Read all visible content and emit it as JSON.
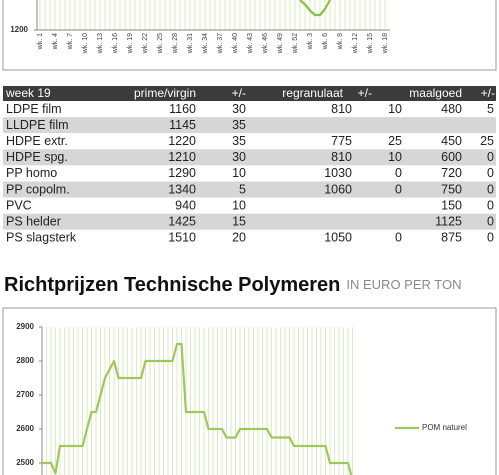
{
  "chart_data": [
    {
      "type": "line",
      "categories": [
        "wk. 1",
        null,
        null,
        "wk. 4",
        null,
        null,
        "wk. 7",
        null,
        null,
        "wk. 10",
        null,
        null,
        "wk. 13",
        null,
        null,
        "wk. 16",
        null,
        null,
        "wk. 19",
        null,
        null,
        "wk. 22",
        null,
        null,
        "wk. 25",
        null,
        null,
        "wk. 28",
        null,
        null,
        "wk. 31",
        null,
        null,
        "wk. 34",
        null,
        null,
        "wk. 37",
        null,
        null,
        "wk. 40",
        null,
        null,
        "wk. 43",
        null,
        null,
        "wk. 46",
        null,
        null,
        "wk. 49",
        null,
        null,
        "wk. 52",
        null,
        null,
        "wk. 3",
        null,
        null,
        "wk. 6",
        null,
        null,
        "wk. 9",
        null,
        null,
        "wk. 12",
        null,
        null,
        "wk. 15",
        null,
        null,
        "wk. 18"
      ],
      "series": [
        {
          "color": "#8cc044",
          "values": [
            null,
            null,
            null,
            null,
            null,
            null,
            null,
            null,
            null,
            null,
            null,
            null,
            null,
            null,
            null,
            null,
            null,
            null,
            null,
            null,
            null,
            null,
            null,
            null,
            null,
            null,
            null,
            null,
            null,
            null,
            null,
            null,
            null,
            null,
            null,
            null,
            null,
            null,
            null,
            null,
            null,
            null,
            null,
            null,
            null,
            null,
            null,
            null,
            null,
            null,
            null,
            null,
            1300,
            1285,
            1265,
            1250,
            1250,
            1270,
            1300,
            null,
            null,
            null,
            null,
            null,
            null,
            null,
            null,
            null,
            null,
            null
          ]
        }
      ],
      "ylim": [
        1200,
        1400
      ],
      "yticks": [
        1200
      ],
      "grid": true
    },
    {
      "type": "line",
      "series": [
        {
          "name": "POM naturel",
          "color": "#9dc85a",
          "values": [
            2500,
            2500,
            2500,
            2470,
            2550,
            2550,
            2550,
            2550,
            2550,
            2550,
            2600,
            2650,
            2650,
            2700,
            2750,
            2775,
            2800,
            2750,
            2750,
            2750,
            2750,
            2750,
            2750,
            2800,
            2800,
            2800,
            2800,
            2800,
            2800,
            2800,
            2850,
            2850,
            2650,
            2650,
            2650,
            2650,
            2650,
            2600,
            2600,
            2600,
            2600,
            2575,
            2575,
            2575,
            2600,
            2600,
            2600,
            2600,
            2600,
            2600,
            2600,
            2575,
            2575,
            2575,
            2575,
            2575,
            2550,
            2550,
            2550,
            2550,
            2550,
            2550,
            2550,
            2550,
            2500,
            2500,
            2500,
            2500,
            2500,
            2450
          ]
        }
      ],
      "ylim": [
        2400,
        2900
      ],
      "yticks": [
        2500,
        2600,
        2700,
        2800,
        2900
      ],
      "grid": true,
      "legend": "right"
    }
  ],
  "table": {
    "header": [
      "week 19",
      "prime/virgin",
      "+/-",
      "regranulaat",
      "+/-",
      "maalgoed",
      "+/-"
    ],
    "rows": [
      [
        "LDPE film",
        1160,
        30,
        810,
        10,
        480,
        5
      ],
      [
        "LLDPE film",
        1145,
        35,
        null,
        null,
        null,
        null
      ],
      [
        "HDPE extr.",
        1220,
        35,
        775,
        25,
        450,
        25
      ],
      [
        "HDPE spg.",
        1210,
        30,
        810,
        10,
        600,
        0
      ],
      [
        "PP homo",
        1290,
        10,
        1030,
        0,
        720,
        0
      ],
      [
        "PP copolm.",
        1340,
        5,
        1060,
        0,
        750,
        0
      ],
      [
        "PVC",
        940,
        10,
        null,
        null,
        150,
        0
      ],
      [
        "PS helder",
        1425,
        15,
        null,
        null,
        1125,
        0
      ],
      [
        "PS slagsterk",
        1510,
        20,
        1050,
        0,
        875,
        0
      ]
    ]
  },
  "heading": {
    "title": "Richtprijzen Technische Polymeren",
    "unit": "IN EURO PER TON"
  }
}
